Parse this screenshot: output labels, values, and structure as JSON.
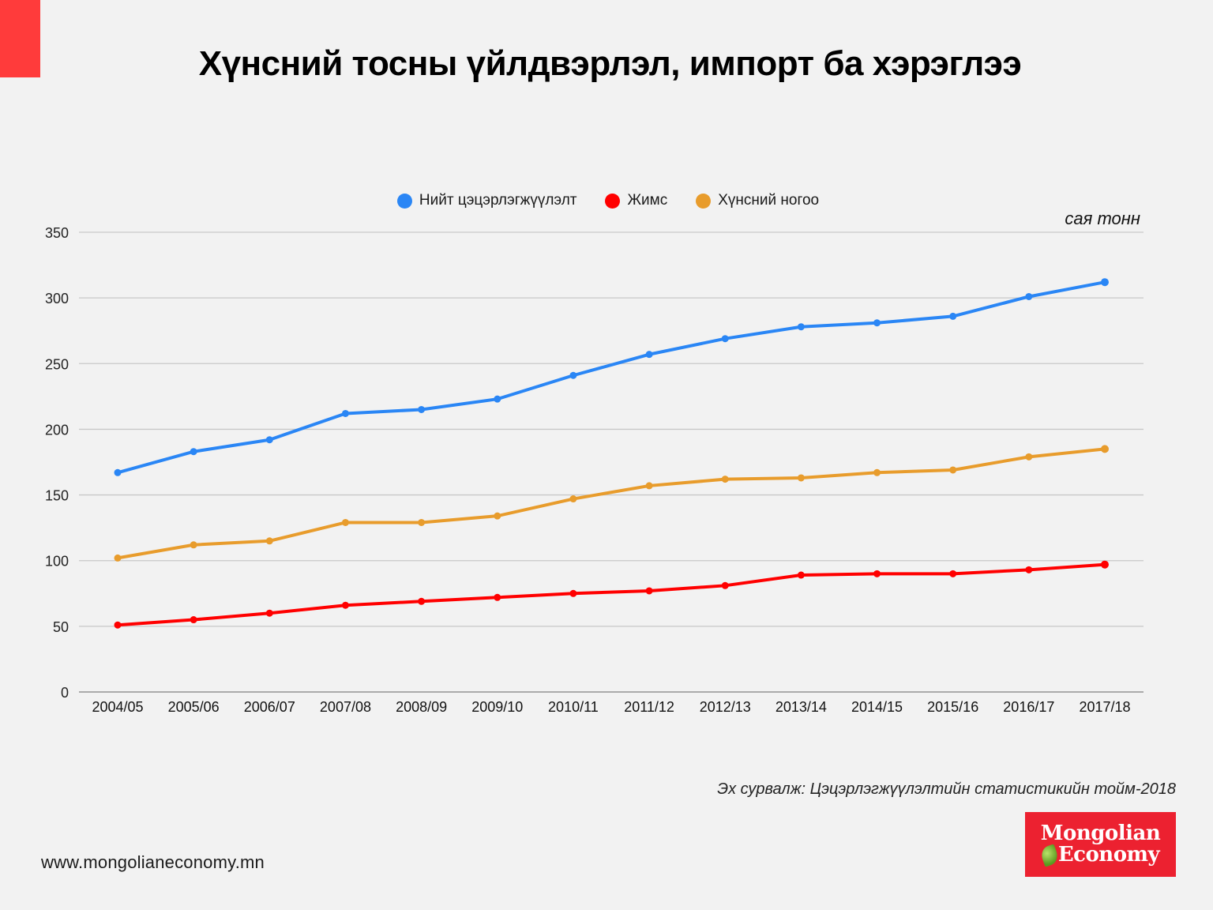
{
  "header": {
    "title": "Хүнсний тосны үйлдвэрлэл, импорт ба хэрэглээ"
  },
  "chart_data": {
    "type": "line",
    "title": "Хүнсний тосны үйлдвэрлэл, импорт ба хэрэглээ",
    "xlabel": "",
    "ylabel": "сая тонн",
    "unit_label": "сая тонн",
    "ylim": [
      0,
      350
    ],
    "yticks": [
      0,
      50,
      100,
      150,
      200,
      250,
      300,
      350
    ],
    "grid": true,
    "legend_position": "top-center",
    "categories": [
      "2004/05",
      "2005/06",
      "2006/07",
      "2007/08",
      "2008/09",
      "2009/10",
      "2010/11",
      "2011/12",
      "2012/13",
      "2013/14",
      "2014/15",
      "2015/16",
      "2016/17",
      "2017/18"
    ],
    "series": [
      {
        "name": "Нийт цэцэрлэгжүүлэлт",
        "color": "#2a86f5",
        "values": [
          167,
          183,
          192,
          212,
          215,
          223,
          241,
          257,
          269,
          278,
          281,
          286,
          301,
          312
        ]
      },
      {
        "name": "Жимс",
        "color": "#ff0000",
        "values": [
          51,
          55,
          60,
          66,
          69,
          72,
          75,
          77,
          81,
          89,
          90,
          90,
          93,
          97
        ]
      },
      {
        "name": "Хүнсний ногоо",
        "color": "#e89c2c",
        "values": [
          102,
          112,
          115,
          129,
          129,
          134,
          147,
          157,
          162,
          163,
          167,
          169,
          179,
          185
        ]
      }
    ]
  },
  "footer": {
    "source": "Эх сурвалж: Цэцэрлэгжүүлэлтийн статистикийн тойм-2018",
    "website": "www.mongolianeconomy.mn",
    "logo_line1": "Mongolian",
    "logo_line2": "Economy"
  },
  "colors": {
    "accent": "#ff3b3b",
    "logo_bg": "#ec2130",
    "background": "#f2f2f2"
  }
}
